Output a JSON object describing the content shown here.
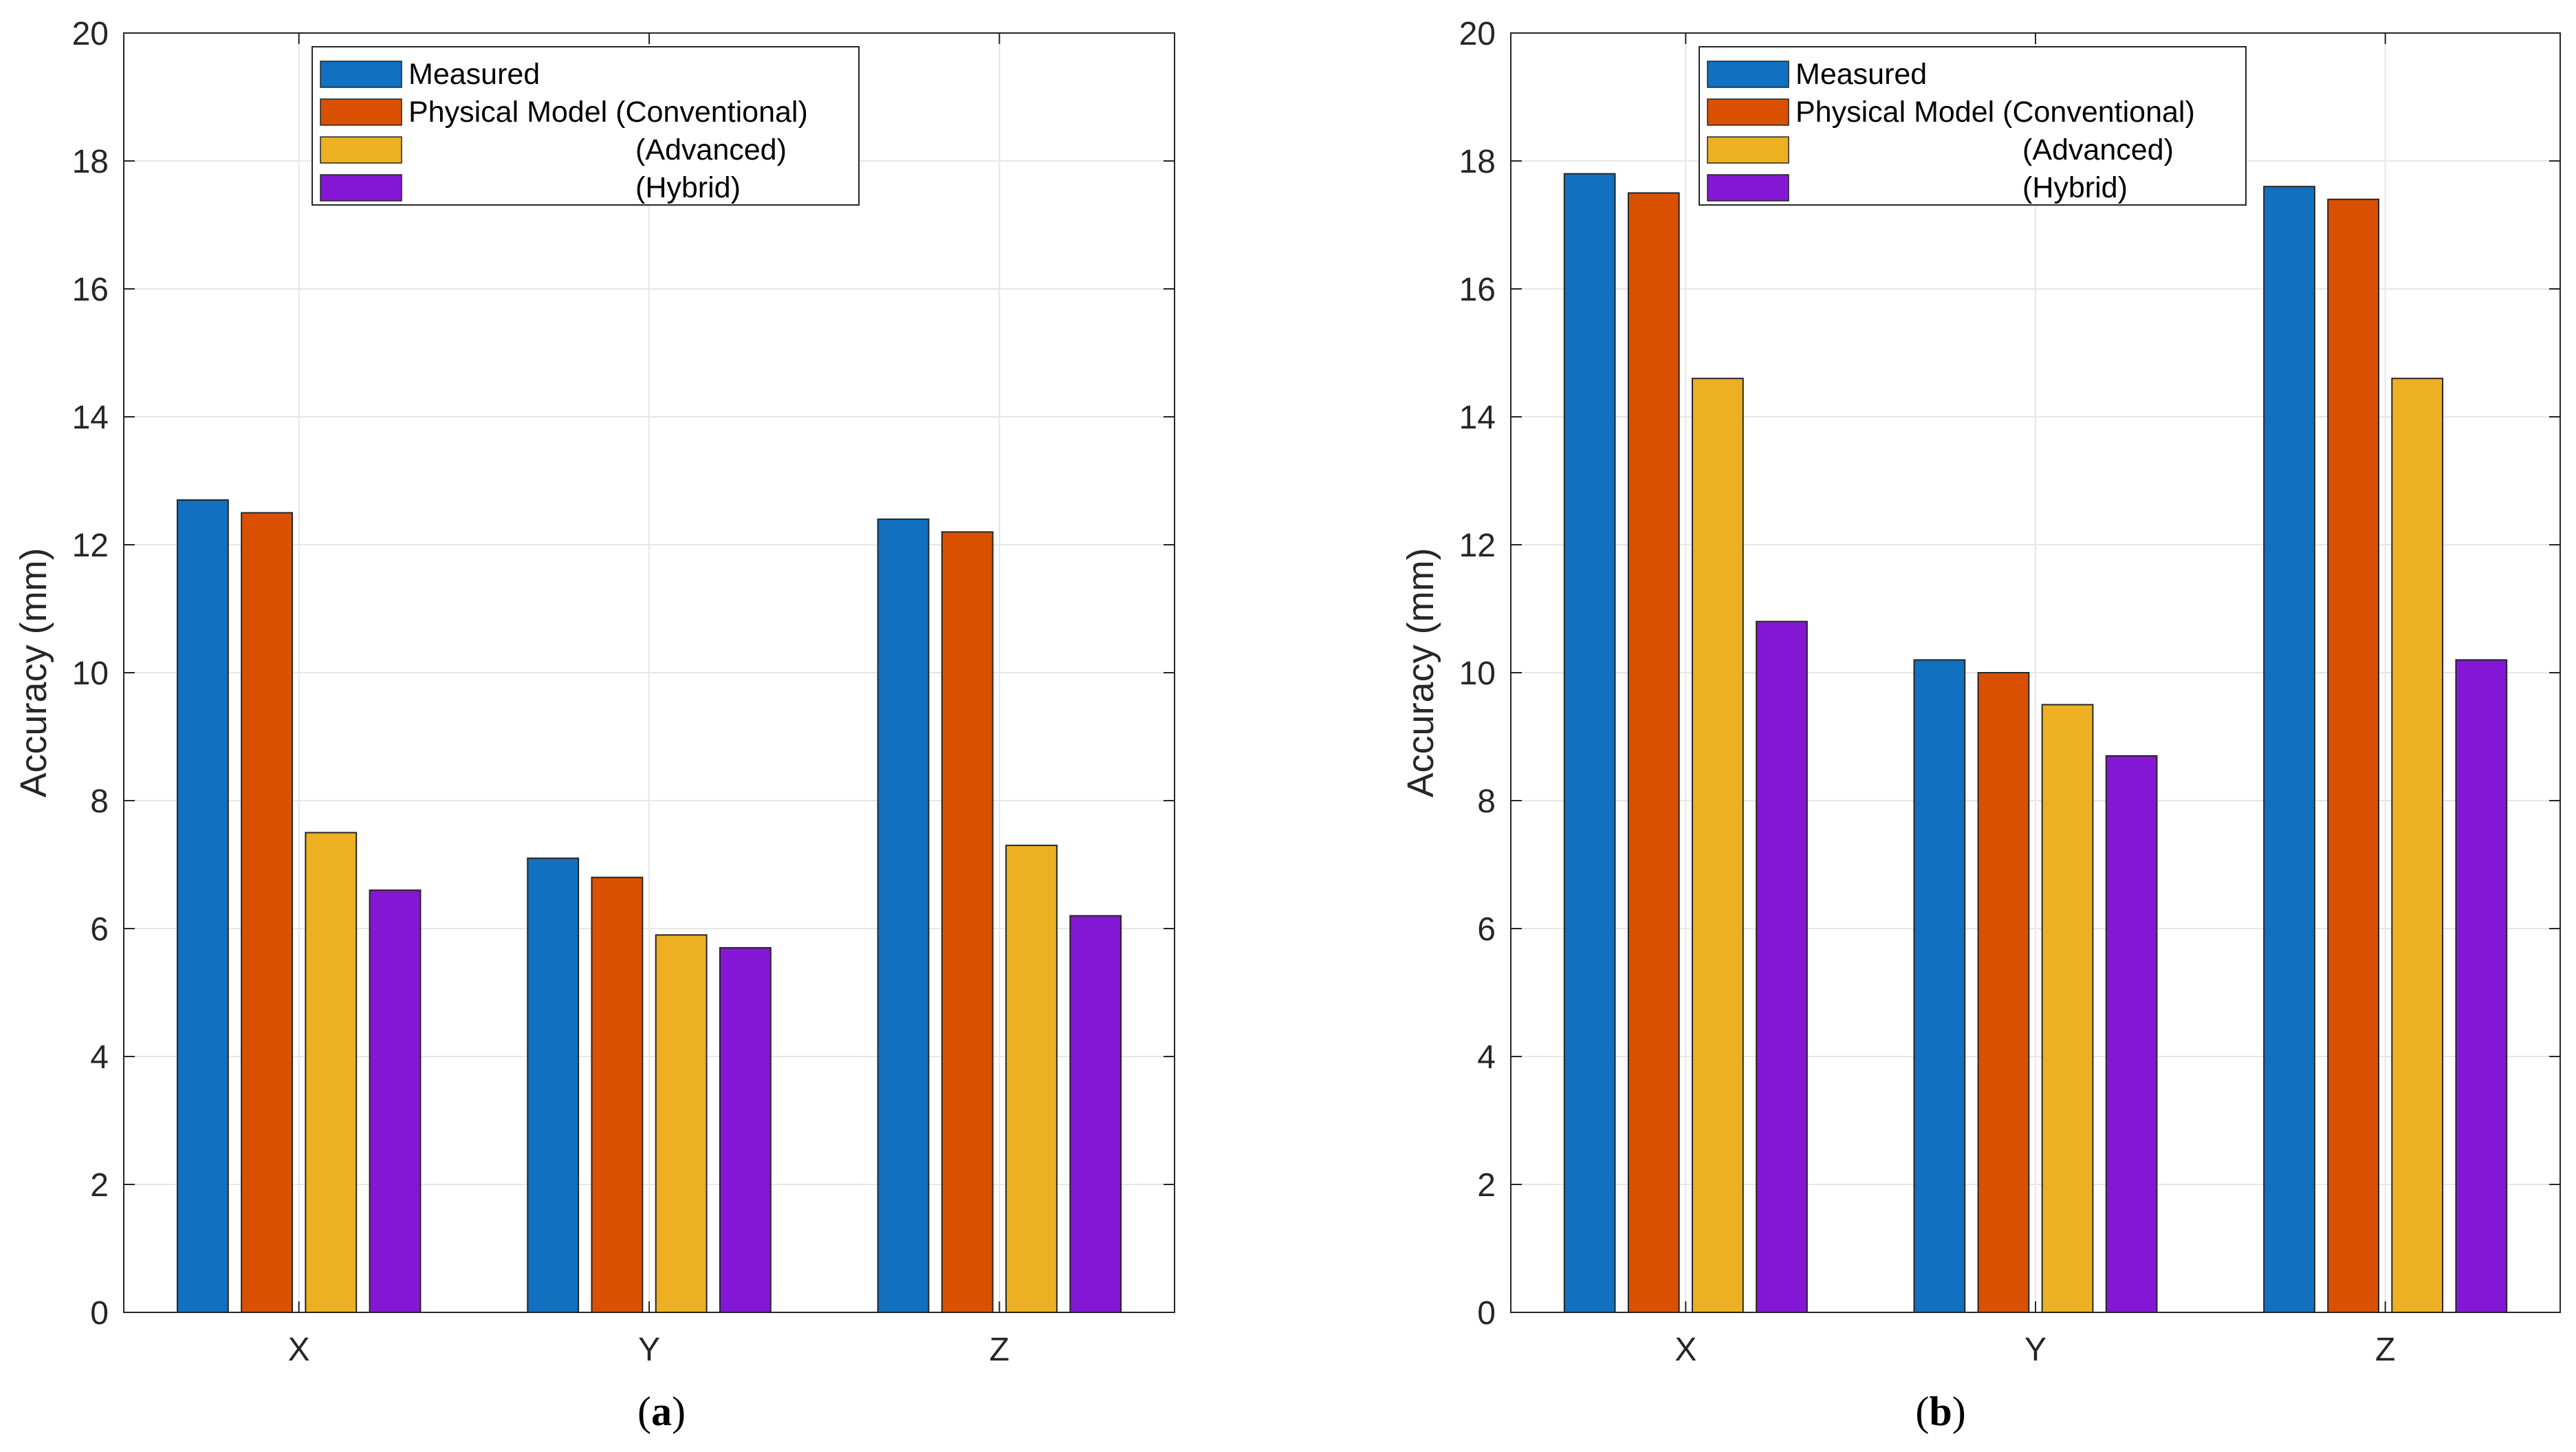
{
  "colors": {
    "measured": "#1170BF",
    "conventional": "#D95100",
    "advanced": "#EDB022",
    "hybrid": "#8417D3",
    "grid": "#E6E6E6",
    "axis": "#262626",
    "bar_edge": "#262626"
  },
  "legend": {
    "entries": [
      "Measured",
      "Physical Model (Conventional)",
      "(Advanced)",
      "(Hybrid)"
    ]
  },
  "chart_data": [
    {
      "type": "bar",
      "panel_label": "a",
      "title": "",
      "xlabel": "",
      "ylabel": "Accuracy (mm)",
      "categories": [
        "X",
        "Y",
        "Z"
      ],
      "ylim": [
        0,
        20
      ],
      "yticks": [
        "0",
        "2",
        "4",
        "6",
        "8",
        "10",
        "12",
        "14",
        "16",
        "18",
        "20"
      ],
      "grid": true,
      "legend_position": "top-left",
      "series": [
        {
          "name": "Measured",
          "values": [
            12.7,
            7.1,
            12.4
          ]
        },
        {
          "name": "Physical Model (Conventional)",
          "values": [
            12.5,
            6.8,
            12.2
          ]
        },
        {
          "name": "Physical Model (Advanced)",
          "values": [
            7.5,
            5.9,
            7.3
          ]
        },
        {
          "name": "Physical Model (Hybrid)",
          "values": [
            6.6,
            5.7,
            6.2
          ]
        }
      ]
    },
    {
      "type": "bar",
      "panel_label": "b",
      "title": "",
      "xlabel": "",
      "ylabel": "Accuracy (mm)",
      "categories": [
        "X",
        "Y",
        "Z"
      ],
      "ylim": [
        0,
        20
      ],
      "yticks": [
        "0",
        "2",
        "4",
        "6",
        "8",
        "10",
        "12",
        "14",
        "16",
        "18",
        "20"
      ],
      "grid": true,
      "legend_position": "top-left",
      "series": [
        {
          "name": "Measured",
          "values": [
            17.8,
            10.2,
            17.6
          ]
        },
        {
          "name": "Physical Model (Conventional)",
          "values": [
            17.5,
            10.0,
            17.4
          ]
        },
        {
          "name": "Physical Model (Advanced)",
          "values": [
            14.6,
            9.5,
            14.6
          ]
        },
        {
          "name": "Physical Model (Hybrid)",
          "values": [
            10.8,
            8.7,
            10.2
          ]
        }
      ]
    }
  ]
}
